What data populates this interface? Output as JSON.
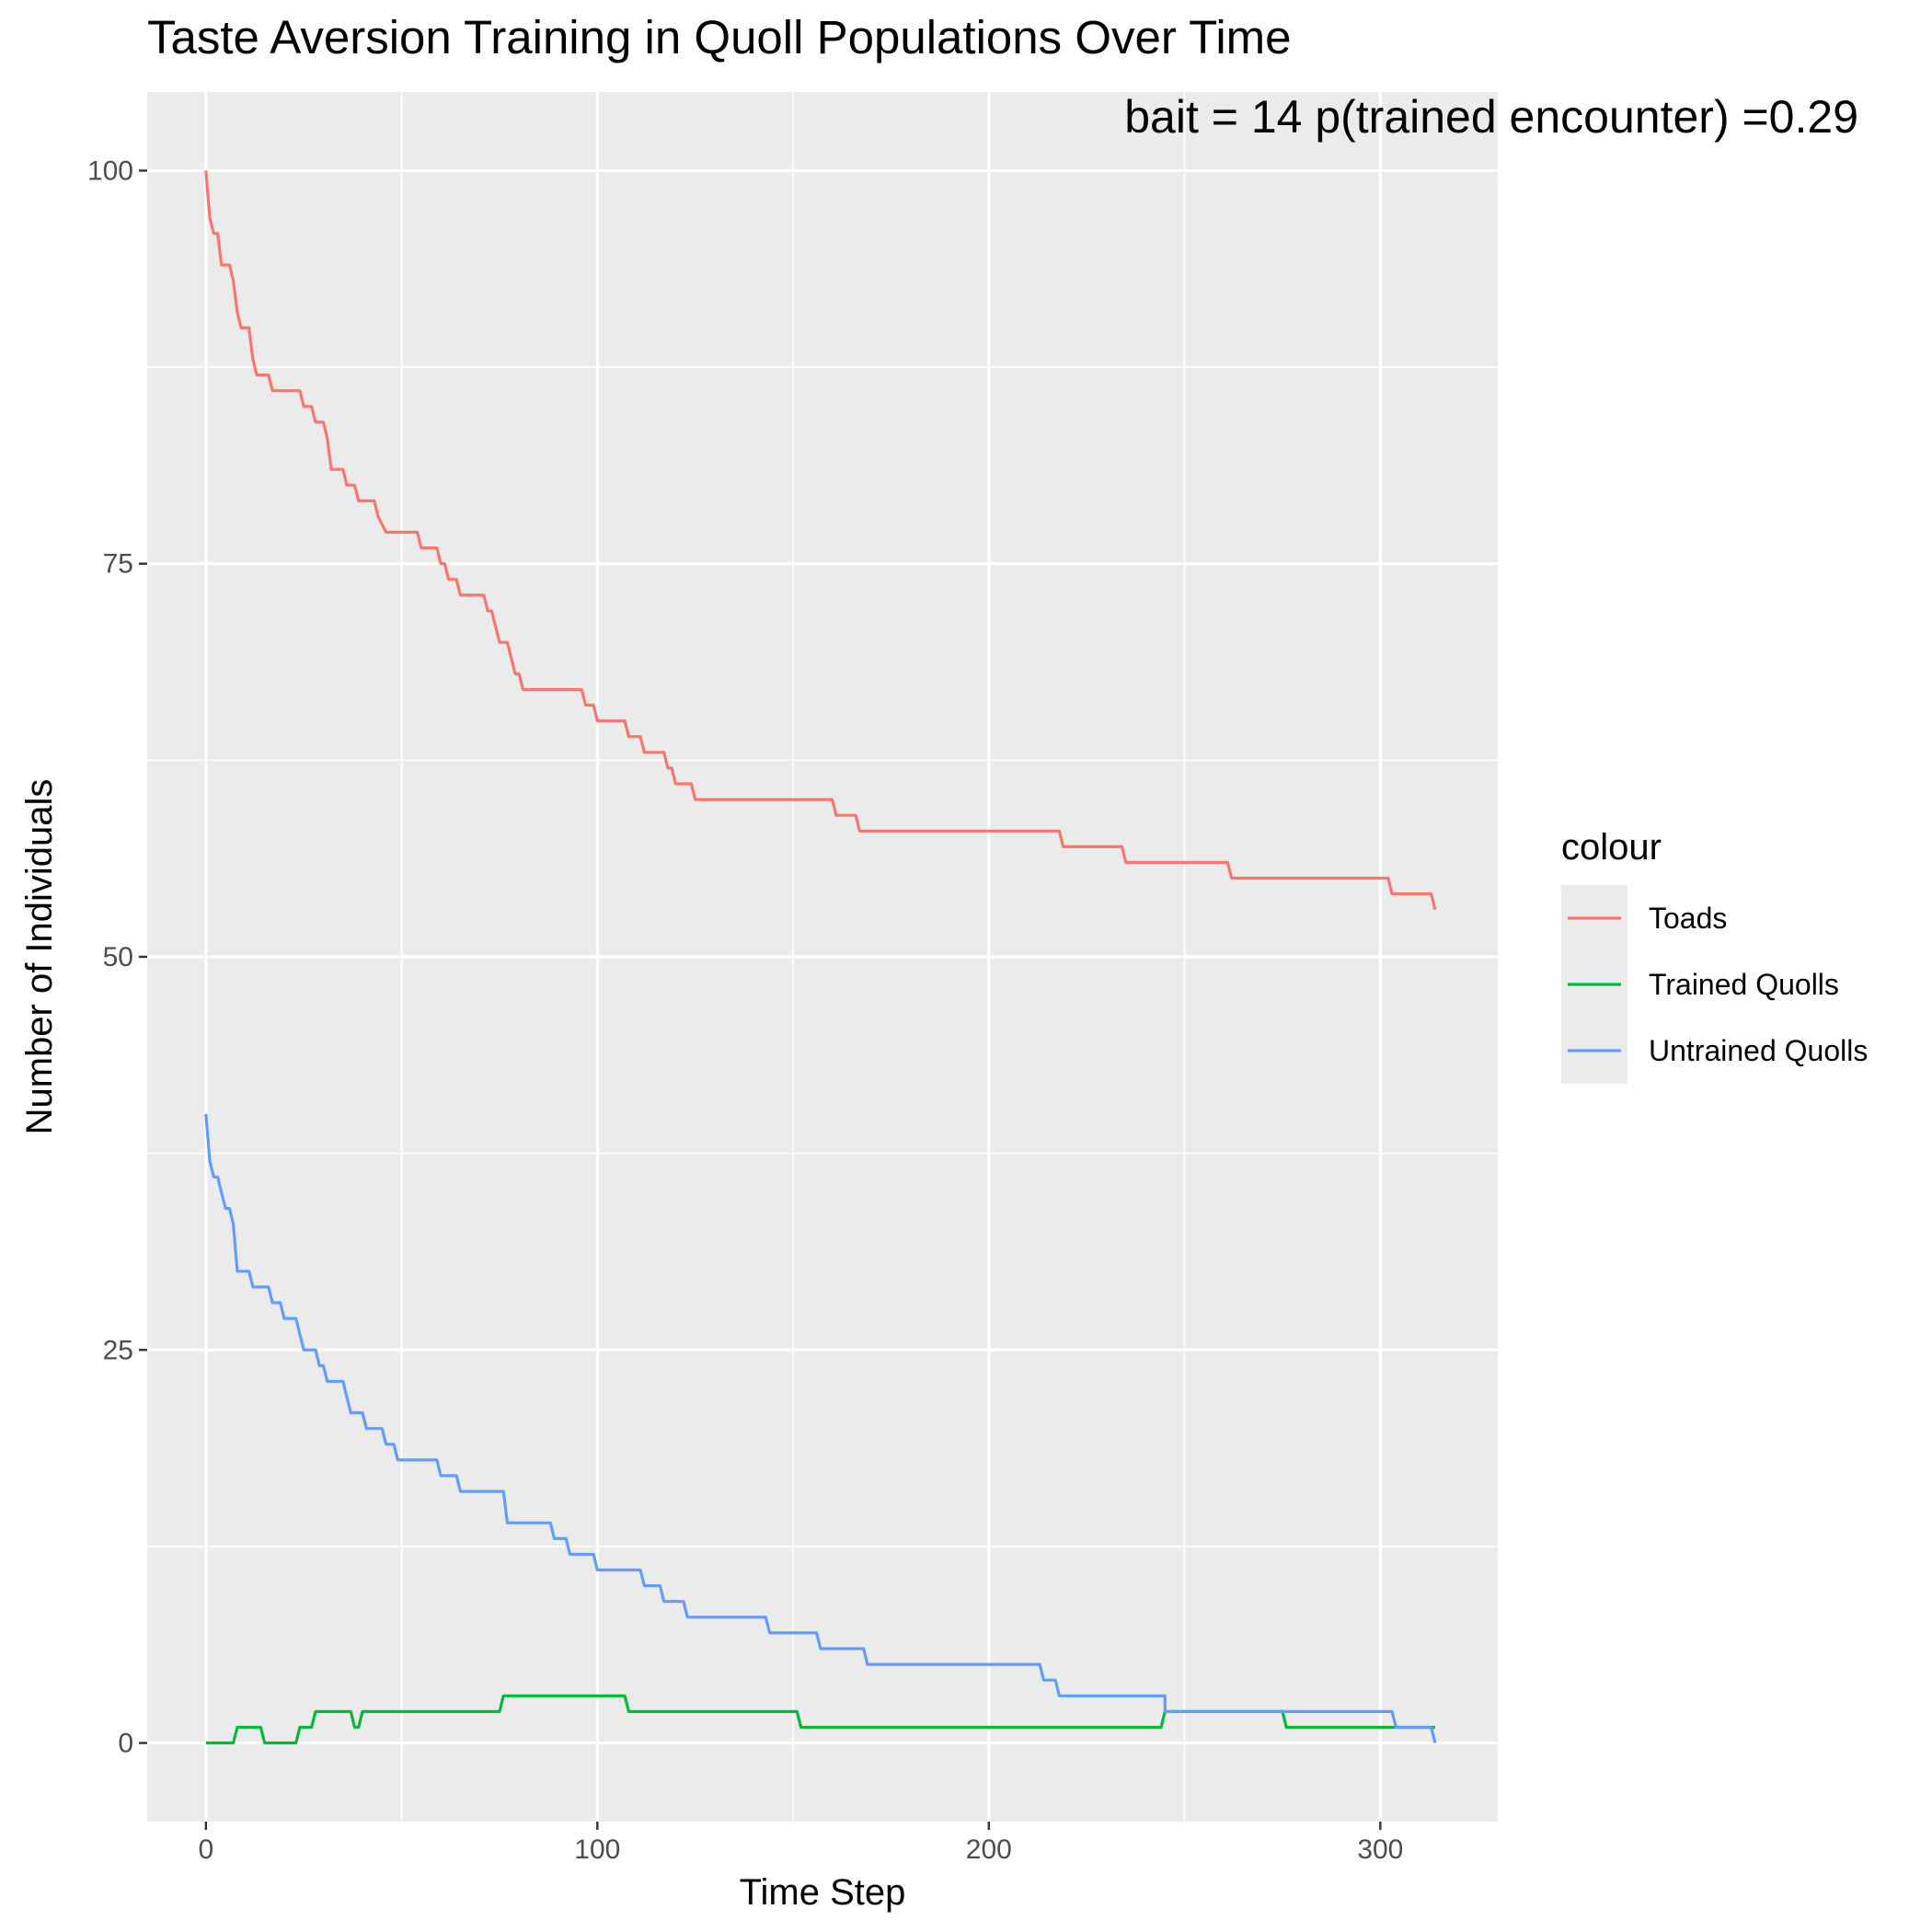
{
  "chart_data": {
    "type": "line",
    "title": "Taste Aversion Training in Quoll Populations Over Time",
    "annotation": "bait = 14  p(trained encounter) =0.29",
    "xlabel": "Time Step",
    "ylabel": "Number of Individuals",
    "xlim": [
      -15,
      330
    ],
    "ylim": [
      -5,
      105
    ],
    "x_ticks": [
      0,
      100,
      200,
      300
    ],
    "y_ticks": [
      0,
      25,
      50,
      75,
      100
    ],
    "x_tick_labels": [
      "0",
      "100",
      "200",
      "300"
    ],
    "y_tick_labels": [
      "0",
      "25",
      "50",
      "75",
      "100"
    ],
    "grid": true,
    "legend": {
      "title": "colour",
      "position": "right"
    },
    "series": [
      {
        "name": "Toads",
        "color": "#F8766D",
        "points": [
          [
            0,
            100
          ],
          [
            1,
            97
          ],
          [
            2,
            96
          ],
          [
            3,
            96
          ],
          [
            4,
            94
          ],
          [
            6,
            94
          ],
          [
            7,
            93
          ],
          [
            8,
            91
          ],
          [
            9,
            90
          ],
          [
            11,
            90
          ],
          [
            12,
            88
          ],
          [
            13,
            87
          ],
          [
            16,
            87
          ],
          [
            17,
            86
          ],
          [
            24,
            86
          ],
          [
            25,
            85
          ],
          [
            27,
            85
          ],
          [
            28,
            84
          ],
          [
            30,
            84
          ],
          [
            31,
            83
          ],
          [
            32,
            81
          ],
          [
            35,
            81
          ],
          [
            36,
            80
          ],
          [
            38,
            80
          ],
          [
            39,
            79
          ],
          [
            43,
            79
          ],
          [
            44,
            78
          ],
          [
            46,
            77
          ],
          [
            54,
            77
          ],
          [
            55,
            76
          ],
          [
            59,
            76
          ],
          [
            60,
            75
          ],
          [
            61,
            75
          ],
          [
            62,
            74
          ],
          [
            64,
            74
          ],
          [
            65,
            73
          ],
          [
            71,
            73
          ],
          [
            72,
            72
          ],
          [
            73,
            72
          ],
          [
            74,
            71
          ],
          [
            75,
            70
          ],
          [
            77,
            70
          ],
          [
            78,
            69
          ],
          [
            79,
            68
          ],
          [
            80,
            68
          ],
          [
            81,
            67
          ],
          [
            96,
            67
          ],
          [
            97,
            66
          ],
          [
            99,
            66
          ],
          [
            100,
            65
          ],
          [
            107,
            65
          ],
          [
            108,
            64
          ],
          [
            111,
            64
          ],
          [
            112,
            63
          ],
          [
            117,
            63
          ],
          [
            118,
            62
          ],
          [
            119,
            62
          ],
          [
            120,
            61
          ],
          [
            124,
            61
          ],
          [
            125,
            60
          ],
          [
            160,
            60
          ],
          [
            161,
            59
          ],
          [
            166,
            59
          ],
          [
            167,
            58
          ],
          [
            218,
            58
          ],
          [
            219,
            57
          ],
          [
            234,
            57
          ],
          [
            235,
            56
          ],
          [
            261,
            56
          ],
          [
            262,
            55
          ],
          [
            302,
            55
          ],
          [
            303,
            54
          ],
          [
            313,
            54
          ],
          [
            314,
            53
          ]
        ]
      },
      {
        "name": "Trained Quolls",
        "color": "#00BA38",
        "points": [
          [
            0,
            0
          ],
          [
            7,
            0
          ],
          [
            8,
            1
          ],
          [
            14,
            1
          ],
          [
            15,
            0
          ],
          [
            23,
            0
          ],
          [
            24,
            1
          ],
          [
            27,
            1
          ],
          [
            28,
            2
          ],
          [
            37,
            2
          ],
          [
            38,
            1
          ],
          [
            39,
            1
          ],
          [
            40,
            2
          ],
          [
            75,
            2
          ],
          [
            76,
            3
          ],
          [
            107,
            3
          ],
          [
            108,
            2
          ],
          [
            151,
            2
          ],
          [
            152,
            1
          ],
          [
            244,
            1
          ],
          [
            245,
            2
          ],
          [
            275,
            2
          ],
          [
            276,
            1
          ],
          [
            314,
            1
          ]
        ]
      },
      {
        "name": "Untrained Quolls",
        "color": "#619CFF",
        "points": [
          [
            0,
            40
          ],
          [
            1,
            37
          ],
          [
            2,
            36
          ],
          [
            3,
            36
          ],
          [
            4,
            35
          ],
          [
            5,
            34
          ],
          [
            6,
            34
          ],
          [
            7,
            33
          ],
          [
            8,
            30
          ],
          [
            11,
            30
          ],
          [
            12,
            29
          ],
          [
            16,
            29
          ],
          [
            17,
            28
          ],
          [
            19,
            28
          ],
          [
            20,
            27
          ],
          [
            23,
            27
          ],
          [
            24,
            26
          ],
          [
            25,
            25
          ],
          [
            28,
            25
          ],
          [
            29,
            24
          ],
          [
            30,
            24
          ],
          [
            31,
            23
          ],
          [
            35,
            23
          ],
          [
            36,
            22
          ],
          [
            37,
            21
          ],
          [
            40,
            21
          ],
          [
            41,
            20
          ],
          [
            45,
            20
          ],
          [
            46,
            19
          ],
          [
            48,
            19
          ],
          [
            49,
            18
          ],
          [
            59,
            18
          ],
          [
            60,
            17
          ],
          [
            64,
            17
          ],
          [
            65,
            16
          ],
          [
            76,
            16
          ],
          [
            77,
            14
          ],
          [
            88,
            14
          ],
          [
            89,
            13
          ],
          [
            92,
            13
          ],
          [
            93,
            12
          ],
          [
            99,
            12
          ],
          [
            100,
            11
          ],
          [
            111,
            11
          ],
          [
            112,
            10
          ],
          [
            116,
            10
          ],
          [
            117,
            9
          ],
          [
            122,
            9
          ],
          [
            123,
            8
          ],
          [
            143,
            8
          ],
          [
            144,
            7
          ],
          [
            156,
            7
          ],
          [
            157,
            6
          ],
          [
            168,
            6
          ],
          [
            169,
            5
          ],
          [
            213,
            5
          ],
          [
            214,
            4
          ],
          [
            217,
            4
          ],
          [
            218,
            3
          ],
          [
            245,
            3
          ],
          [
            245,
            2
          ],
          [
            303,
            2
          ],
          [
            304,
            1
          ],
          [
            313,
            1
          ],
          [
            314,
            0
          ]
        ]
      }
    ]
  }
}
